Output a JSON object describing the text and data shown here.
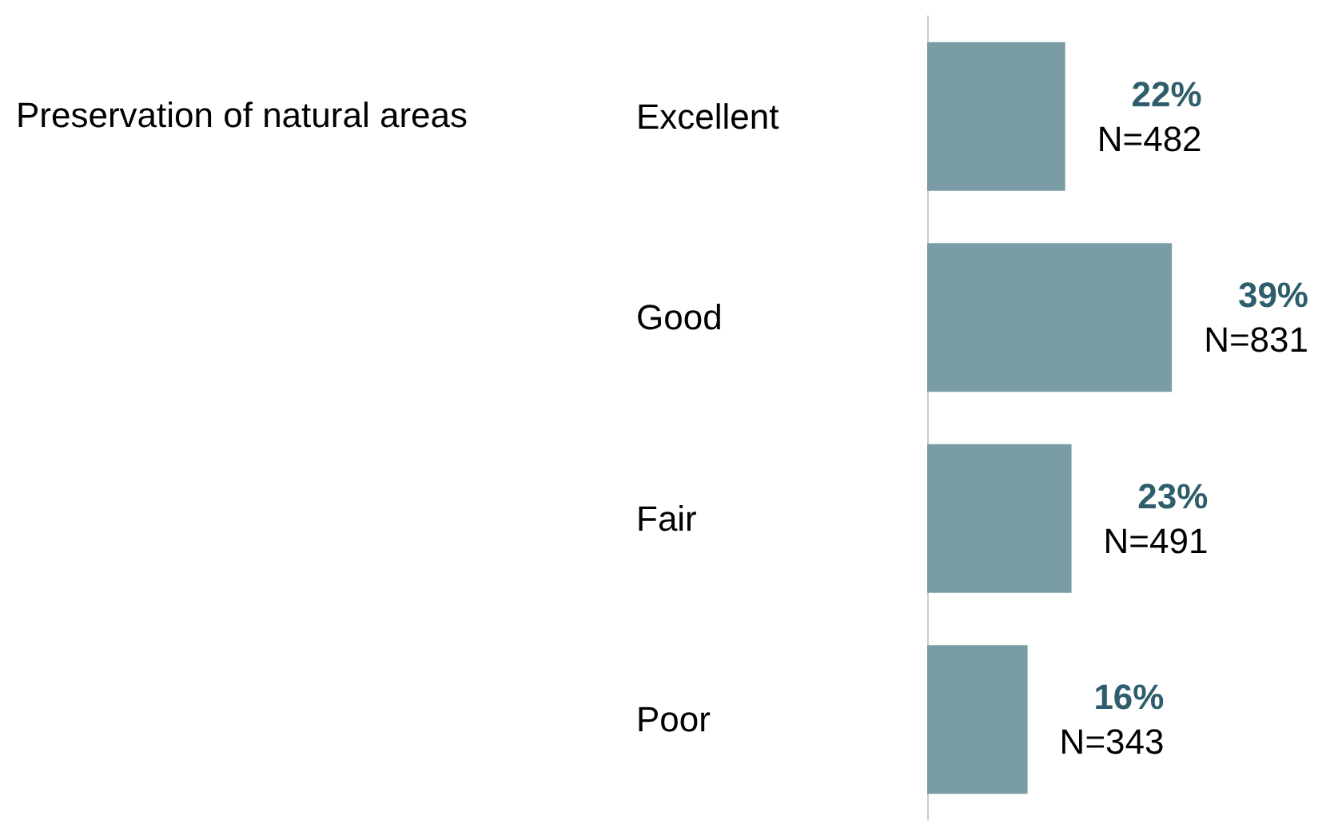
{
  "chart_data": {
    "type": "bar",
    "orientation": "horizontal",
    "ylabel": "Preservation of natural areas",
    "categories": [
      "Excellent",
      "Good",
      "Fair",
      "Poor"
    ],
    "values": [
      22,
      39,
      23,
      16
    ],
    "color": "#7a9ca5",
    "value_labels": [
      "22%\nN=482",
      "39%\nN=831",
      "23%\nN=491",
      "16%\nN=343"
    ],
    "tick_labels": "y"
  }
}
